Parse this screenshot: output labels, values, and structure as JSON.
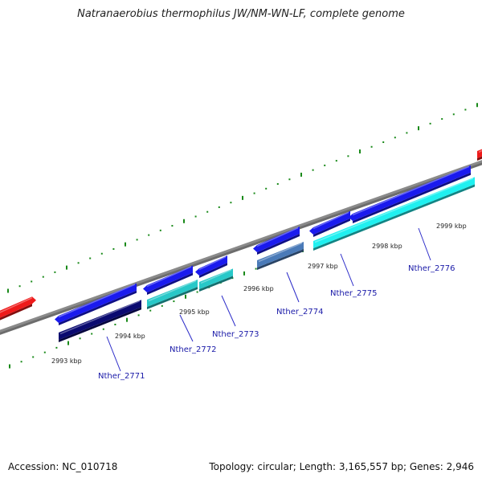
{
  "title": "Natranaerobius thermophilus JW/NM-WN-LF, complete genome",
  "footer": {
    "accession": "Accession: NC_010718",
    "stats": "Topology: circular; Length: 3,165,557 bp; Genes: 2,946"
  },
  "kbp_labels": [
    "2993 kbp",
    "2994 kbp",
    "2995 kbp",
    "2996 kbp",
    "2997 kbp",
    "2998 kbp",
    "2999 kbp"
  ],
  "gene_labels": [
    "Nther_2771",
    "Nther_2772",
    "Nther_2773",
    "Nther_2774",
    "Nther_2775",
    "Nther_2776"
  ],
  "colors": {
    "backbone": "#8a8a8a",
    "tick": "#1a8a1a",
    "blue": "#1a1aee",
    "navy": "#0a0a70",
    "teal": "#28c8c8",
    "steel": "#4a7ab8",
    "cyan": "#20f0f0",
    "red": "#ee1a1a",
    "label_line": "#2a2ac8"
  }
}
